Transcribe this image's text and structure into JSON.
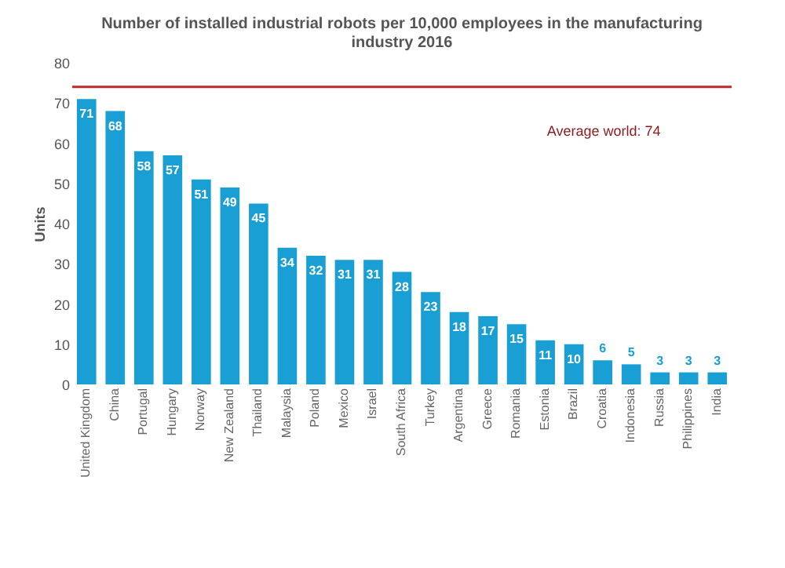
{
  "chart_data": {
    "type": "bar",
    "title": [
      "Number of installed industrial robots per 10,000 employees in the manufacturing",
      "industry  2016"
    ],
    "ylabel": "Units",
    "categories": [
      "United Kingdom",
      "China",
      "Portugal",
      "Hungary",
      "Norway",
      "New Zealand",
      "Thailand",
      "Malaysia",
      "Poland",
      "Mexico",
      "Israel",
      "South Africa",
      "Turkey",
      "Argentina",
      "Greece",
      "Romania",
      "Estonia",
      "Brazil",
      "Croatia",
      "Indonesia",
      "Russia",
      "Philippines",
      "India"
    ],
    "values": [
      71,
      68,
      58,
      57,
      51,
      49,
      45,
      34,
      32,
      31,
      31,
      28,
      23,
      18,
      17,
      15,
      11,
      10,
      6,
      5,
      3,
      3,
      3
    ],
    "color": "#1a9fd4",
    "data_labels": true,
    "ylim": [
      0,
      80
    ],
    "yticks": [
      0,
      10,
      20,
      30,
      40,
      50,
      60,
      70,
      80
    ],
    "ref_lines": [
      {
        "axis": "y",
        "value": 74,
        "label": "Average world: 74",
        "color": "#c0272d"
      }
    ]
  }
}
